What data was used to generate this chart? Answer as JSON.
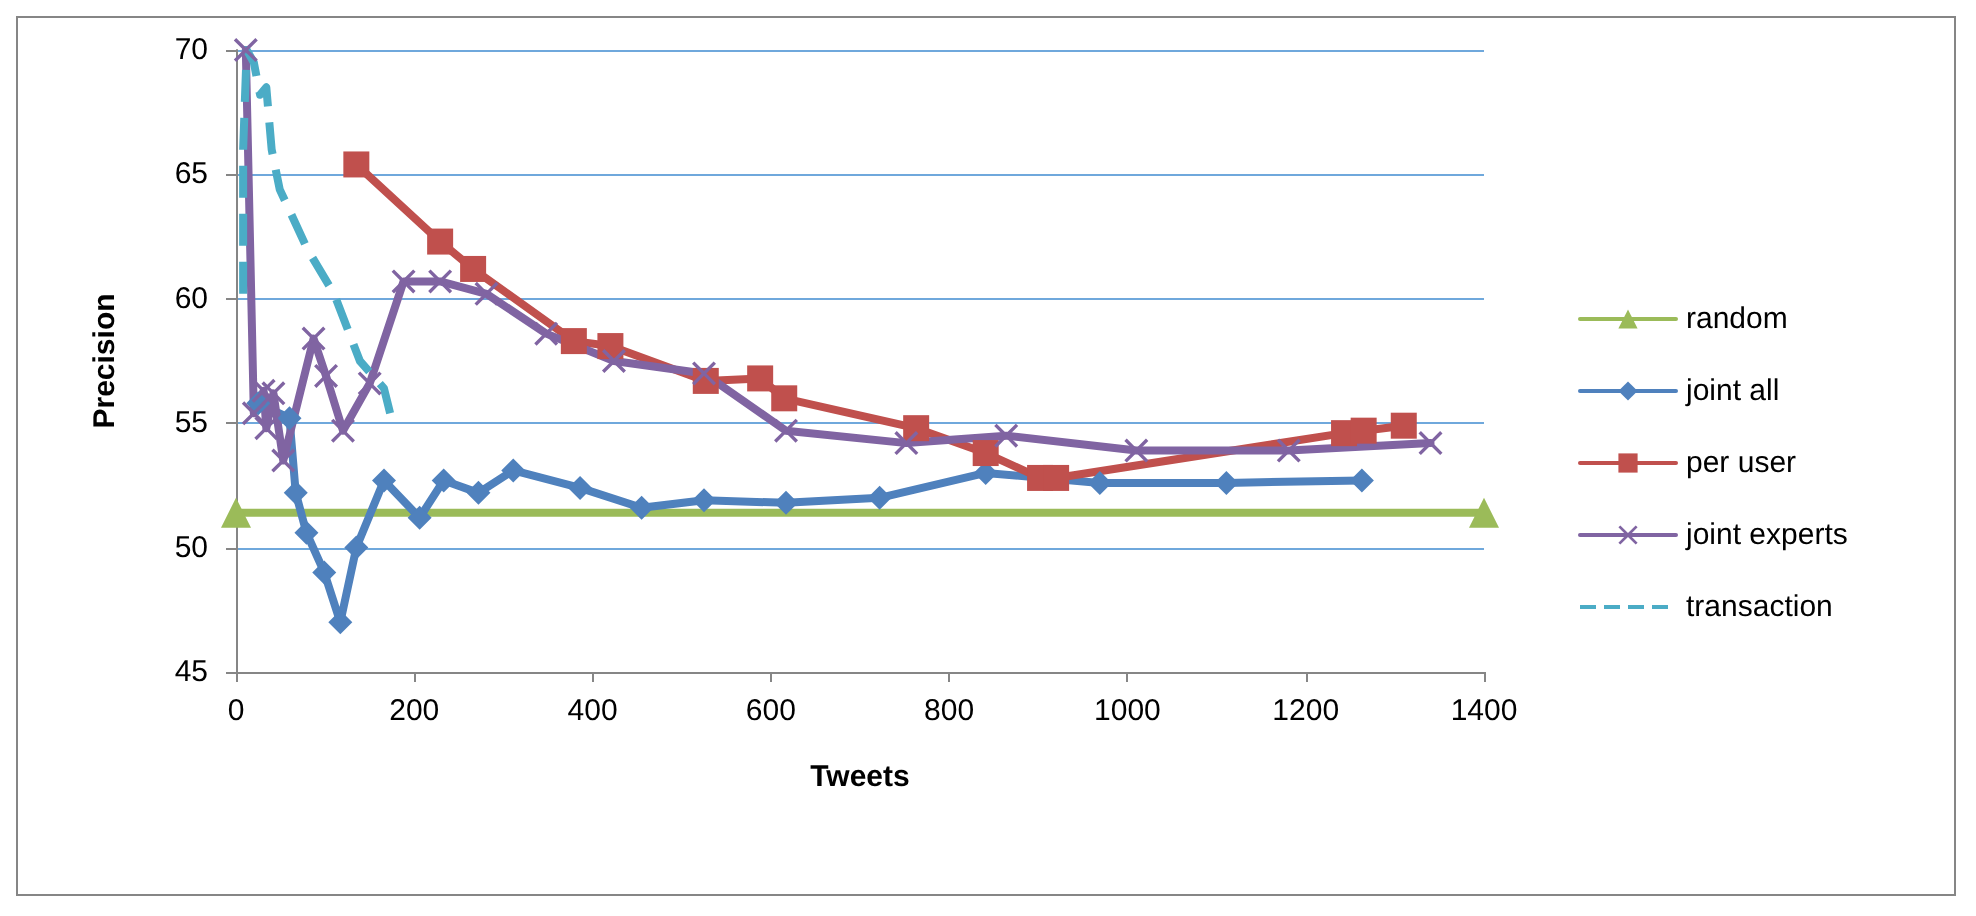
{
  "chart_data": {
    "type": "line",
    "xlabel": "Tweets",
    "ylabel": "Precision",
    "xlim": [
      0,
      1400
    ],
    "xticks": [
      0,
      200,
      400,
      600,
      800,
      1000,
      1200,
      1400
    ],
    "ylim": [
      45,
      70
    ],
    "yticks": [
      45,
      50,
      55,
      60,
      65,
      70
    ],
    "grid": "y",
    "legend": "right",
    "series": [
      {
        "name": "random",
        "color": "#9bbb59",
        "marker": "triangle",
        "x": [
          0,
          1400
        ],
        "values": [
          51.4,
          51.4
        ]
      },
      {
        "name": "joint all",
        "color": "#4f81bd",
        "marker": "diamond",
        "x": [
          25,
          60,
          67,
          79,
          99,
          117,
          135,
          166,
          206,
          233,
          272,
          311,
          386,
          455,
          525,
          617,
          722,
          841,
          969,
          1111,
          1263
        ],
        "values": [
          55.8,
          55.2,
          52.2,
          50.6,
          49.0,
          47.0,
          50.0,
          52.7,
          51.2,
          52.7,
          52.2,
          53.1,
          52.4,
          51.6,
          51.9,
          51.8,
          52.0,
          53.0,
          52.6,
          52.6,
          52.7
        ]
      },
      {
        "name": "per user",
        "color": "#c0504d",
        "marker": "square",
        "x": [
          135,
          229,
          266,
          379,
          420,
          527,
          588,
          615,
          763,
          841,
          902,
          920,
          1243,
          1265,
          1310
        ],
        "values": [
          65.4,
          62.3,
          61.2,
          58.3,
          58.1,
          56.7,
          56.8,
          56.0,
          54.8,
          53.8,
          52.8,
          52.8,
          54.6,
          54.7,
          54.9
        ]
      },
      {
        "name": "joint experts",
        "color": "#8064a2",
        "marker": "cross",
        "x": [
          11,
          20,
          31,
          34,
          42,
          53,
          87,
          101,
          120,
          150,
          188,
          229,
          281,
          348,
          424,
          525,
          617,
          752,
          864,
          1010,
          1181,
          1340
        ],
        "values": [
          70,
          55.4,
          56.3,
          54.8,
          56.2,
          53.5,
          58.4,
          56.9,
          54.7,
          56.6,
          60.7,
          60.7,
          60.2,
          58.6,
          57.5,
          57.0,
          54.7,
          54.2,
          54.5,
          53.9,
          53.9,
          54.2
        ]
      },
      {
        "name": "transaction",
        "color": "#4bacc6",
        "marker": "none",
        "line_style": "dashed",
        "x": [
          8,
          8,
          12,
          20,
          27,
          34,
          40,
          49,
          80,
          110,
          139,
          166,
          177
        ],
        "values": [
          60.2,
          66,
          70,
          69.5,
          68.2,
          68.5,
          66,
          64.4,
          62,
          60.2,
          57.5,
          56.4,
          54.8
        ]
      }
    ]
  }
}
